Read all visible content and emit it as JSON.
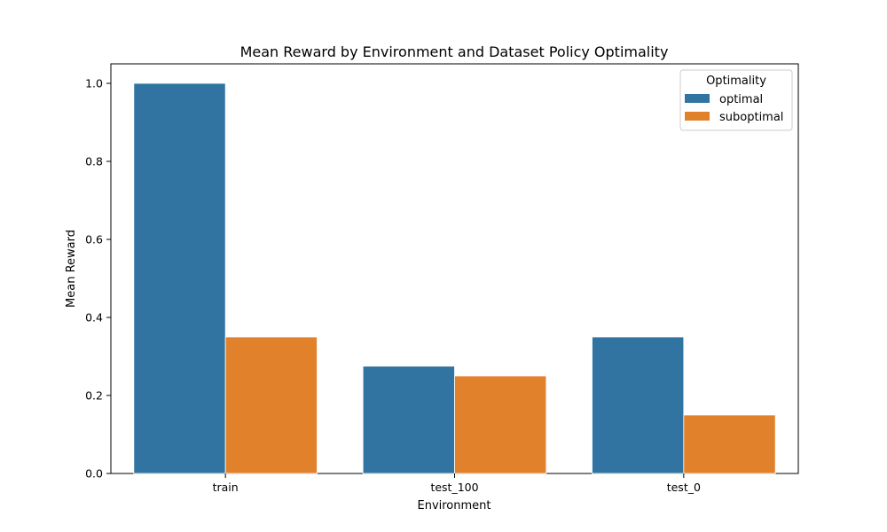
{
  "chart_data": {
    "type": "bar",
    "title": "Mean Reward by Environment and Dataset Policy Optimality",
    "xlabel": "Environment",
    "ylabel": "Mean Reward",
    "categories": [
      "train",
      "test_100",
      "test_0"
    ],
    "ylim": [
      0,
      1.05
    ],
    "yticks": [
      "0.0",
      "0.2",
      "0.4",
      "0.6",
      "0.8",
      "1.0"
    ],
    "grid": false,
    "legend": {
      "title": "Optimality",
      "placement": "top-right"
    },
    "series": [
      {
        "name": "optimal",
        "color": "#3274a1",
        "values": [
          1.0,
          0.275,
          0.35
        ]
      },
      {
        "name": "suboptimal",
        "color": "#e1812c",
        "values": [
          0.35,
          0.25,
          0.15
        ]
      }
    ]
  }
}
